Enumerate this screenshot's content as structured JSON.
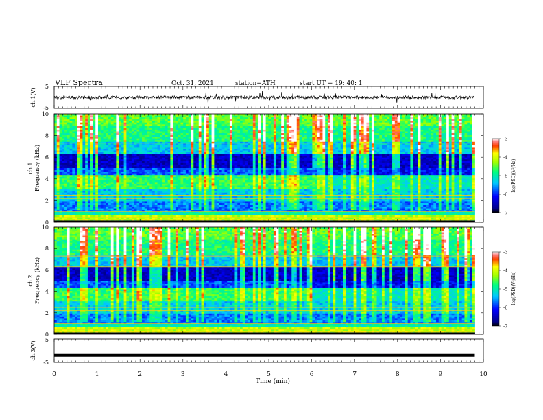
{
  "header": {
    "title": "VLF  Spectra",
    "date": "Oct. 31, 2021",
    "station": "station=ATH",
    "start_ut": "start  UT  =    19: 40: 1"
  },
  "chart_data": [
    {
      "type": "line",
      "panel": "ch1-waveform",
      "ylabel": "ch.1(V)",
      "ylim": [
        -5,
        5
      ],
      "yticks": [
        "5",
        "-5"
      ],
      "xlim": [
        0,
        10
      ],
      "series": [
        {
          "name": "",
          "note_on_values": "noisy trace centered near 0 V",
          "center": 0
        }
      ]
    },
    {
      "type": "heatmap",
      "panel": "ch1-spectrogram",
      "ylabel_line1": "ch.1",
      "ylabel_line2": "Frequency (kHz)",
      "ylim": [
        0,
        10
      ],
      "yticks": [
        "0",
        "2",
        "4",
        "6",
        "8",
        "10"
      ],
      "xlim": [
        0,
        10
      ],
      "colorbar": {
        "label": "log(PSD)(V²/Hz)",
        "ticks": [
          "-3",
          "-4",
          "-5",
          "-6",
          "-7"
        ],
        "range": [
          -7,
          -3
        ]
      }
    },
    {
      "type": "heatmap",
      "panel": "ch2-spectrogram",
      "ylabel_line1": "ch.2",
      "ylabel_line2": "Frequency (kHz)",
      "ylim": [
        0,
        10
      ],
      "yticks": [
        "0",
        "2",
        "4",
        "6",
        "8",
        "10"
      ],
      "xlim": [
        0,
        10
      ],
      "colorbar": {
        "label": "log(PSD)(V²/Hz)",
        "ticks": [
          "-3",
          "-4",
          "-5",
          "-6",
          "-7"
        ],
        "range": [
          -7,
          -3
        ]
      }
    },
    {
      "type": "line",
      "panel": "ch3-waveform",
      "ylabel": "ch.3(V)",
      "ylim": [
        -5,
        5
      ],
      "yticks": [
        "5",
        "-5"
      ],
      "xlim": [
        0,
        10
      ],
      "series": [
        {
          "name": "",
          "center": -2
        }
      ]
    }
  ],
  "xaxis": {
    "label": "Time  (min)",
    "ticks": [
      "0",
      "1",
      "2",
      "3",
      "4",
      "5",
      "6",
      "7",
      "8",
      "9",
      "10"
    ],
    "data_end": 9.8
  }
}
